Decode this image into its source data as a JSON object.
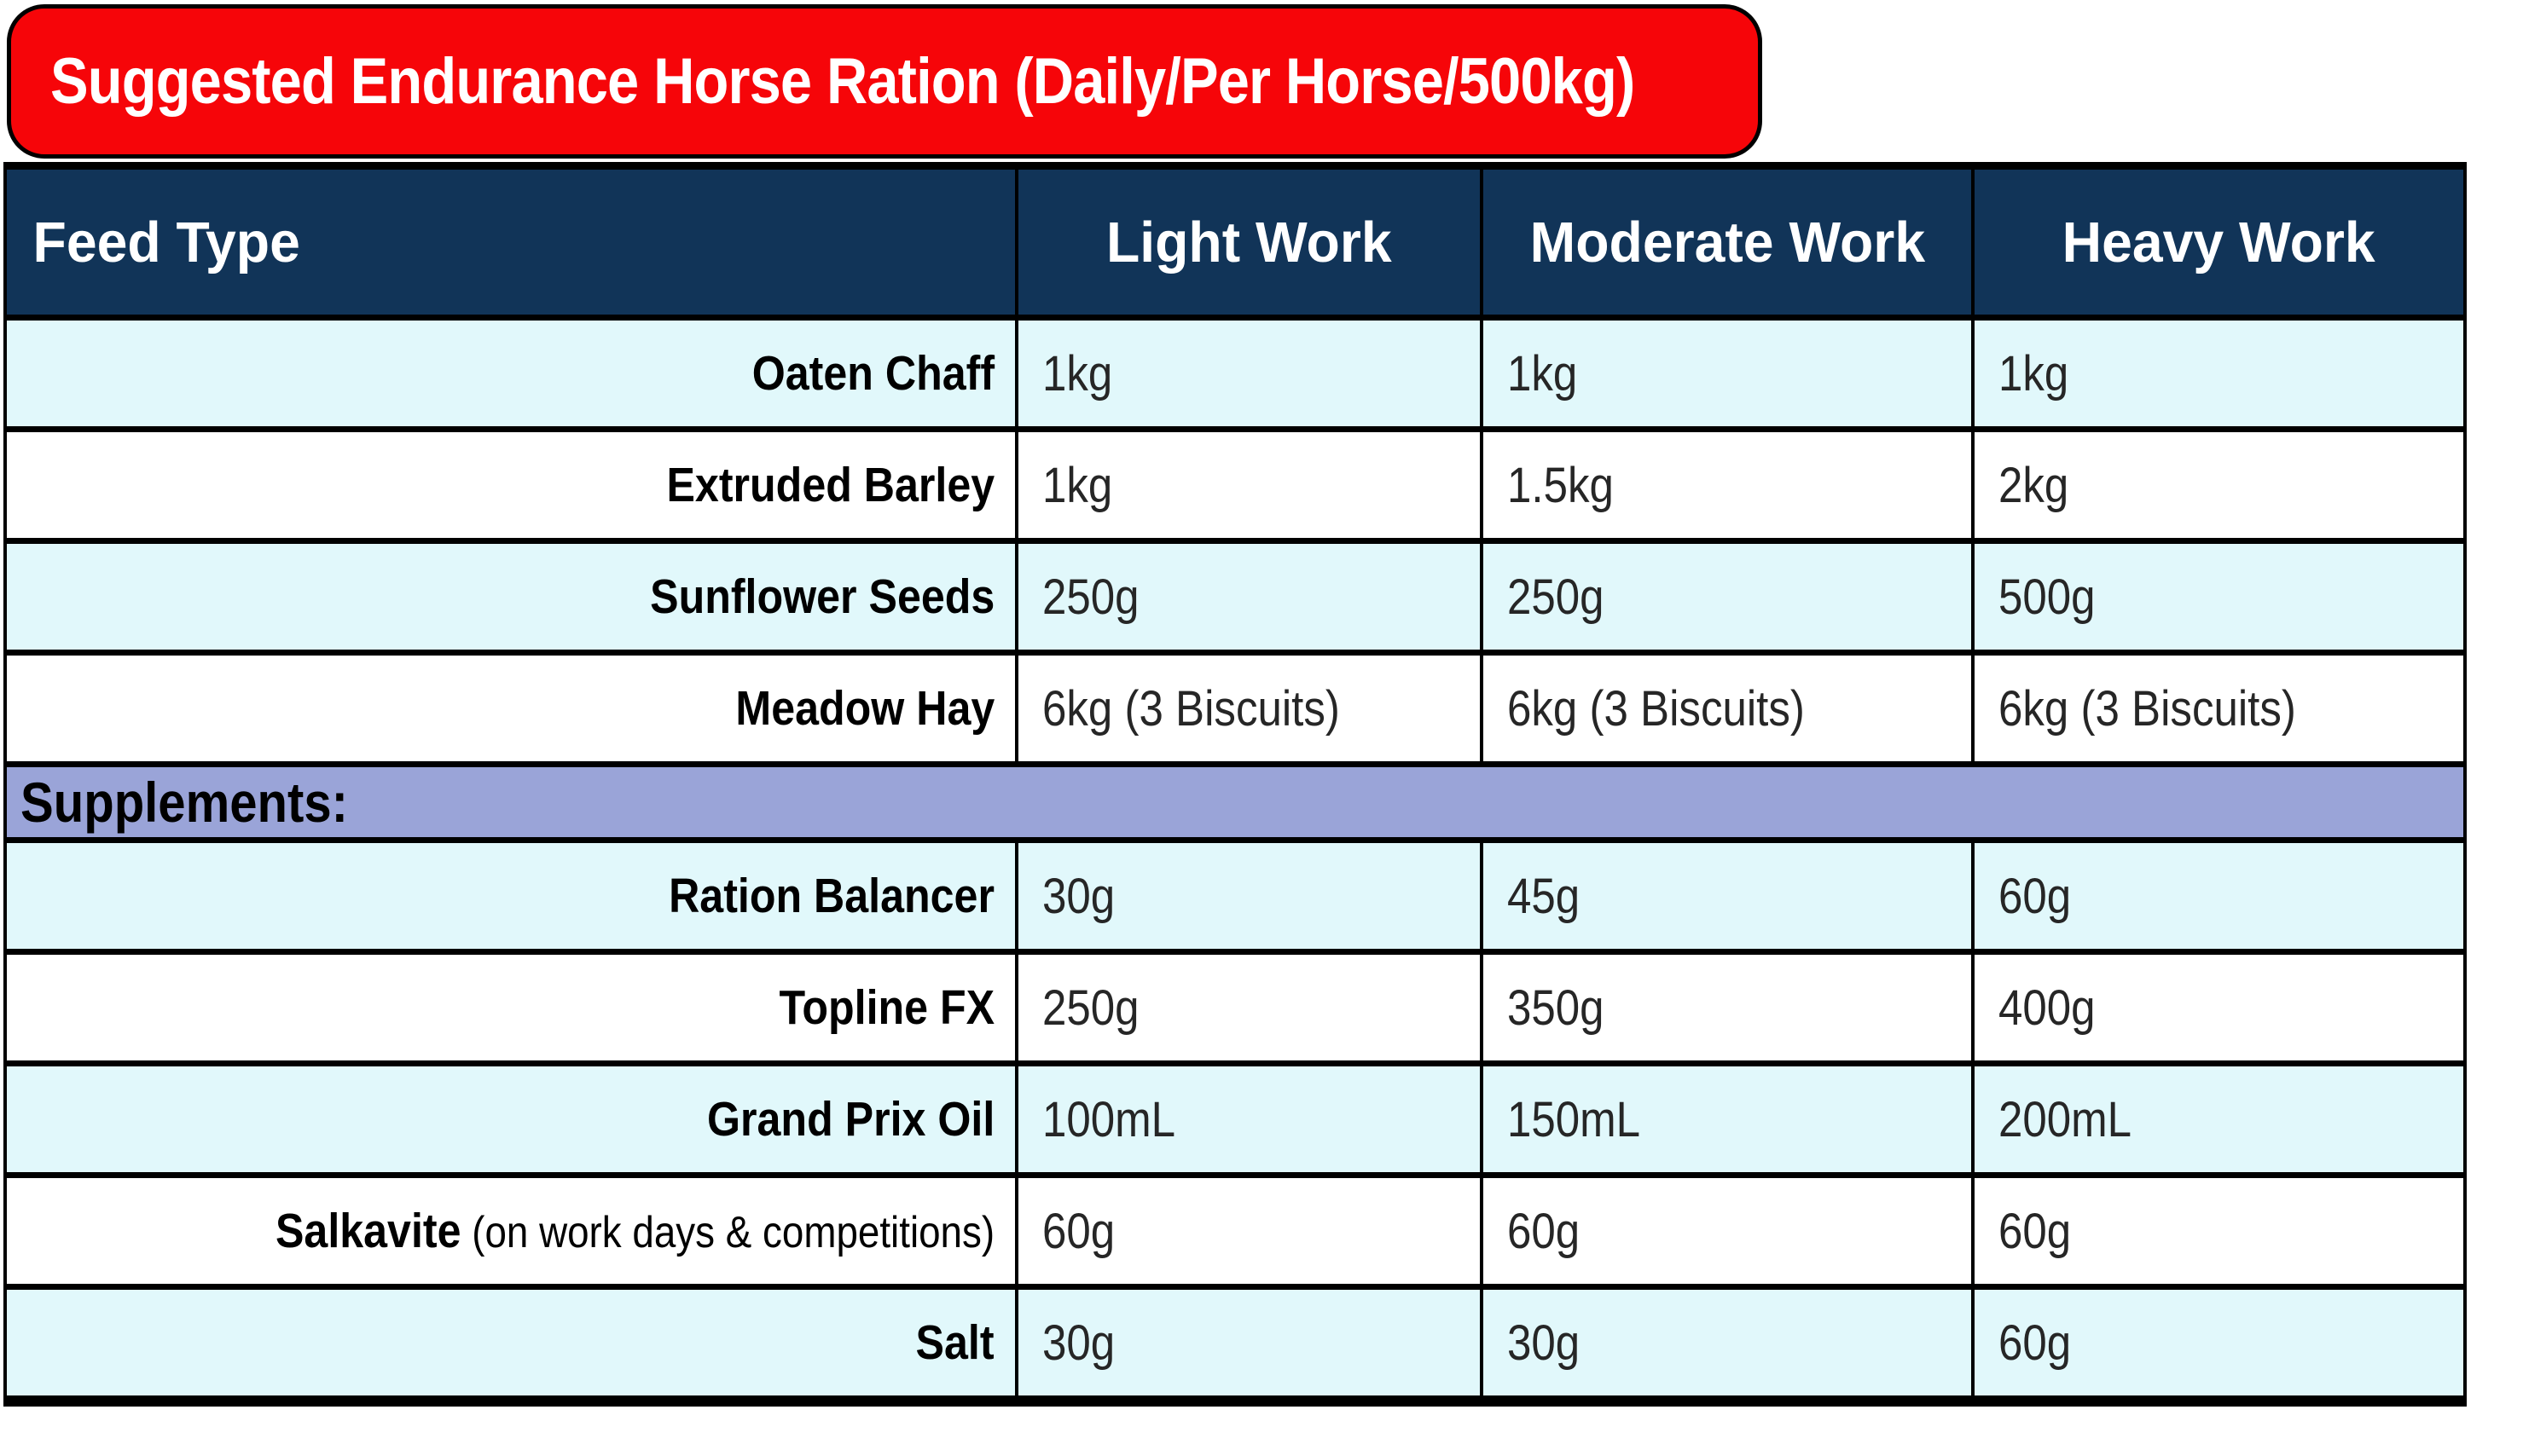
{
  "title": "Suggested Endurance Horse Ration (Daily/Per Horse/500kg)",
  "table": {
    "columns": [
      "Feed Type",
      "Light Work",
      "Moderate Work",
      "Heavy Work"
    ],
    "section_label": "Supplements:",
    "feed_rows": [
      {
        "name": "Oaten Chaff",
        "note": "",
        "values": [
          "1kg",
          "1kg",
          "1kg"
        ]
      },
      {
        "name": "Extruded Barley",
        "note": "",
        "values": [
          "1kg",
          "1.5kg",
          "2kg"
        ]
      },
      {
        "name": "Sunflower Seeds",
        "note": "",
        "values": [
          "250g",
          "250g",
          "500g"
        ]
      },
      {
        "name": "Meadow Hay",
        "note": "",
        "values": [
          "6kg (3 Biscuits)",
          "6kg (3 Biscuits)",
          "6kg (3 Biscuits)"
        ]
      }
    ],
    "supplement_rows": [
      {
        "name": "Ration Balancer",
        "note": "",
        "values": [
          "30g",
          "45g",
          "60g"
        ]
      },
      {
        "name": "Topline FX",
        "note": "",
        "values": [
          "250g",
          "350g",
          "400g"
        ]
      },
      {
        "name": "Grand Prix Oil",
        "note": "",
        "values": [
          "100mL",
          "150mL",
          "200mL"
        ]
      },
      {
        "name": "Salkavite",
        "note": " (on work days & competitions)",
        "values": [
          "60g",
          "60g",
          "60g"
        ]
      },
      {
        "name": "Salt",
        "note": "",
        "values": [
          "30g",
          "30g",
          "60g"
        ]
      }
    ]
  },
  "colors": {
    "banner_red": "#F60509",
    "header_navy": "#113458",
    "row_cyan": "#E1F8FB",
    "section_purple": "#9AA4D8",
    "border_black": "#000000",
    "value_text": "#262626"
  }
}
